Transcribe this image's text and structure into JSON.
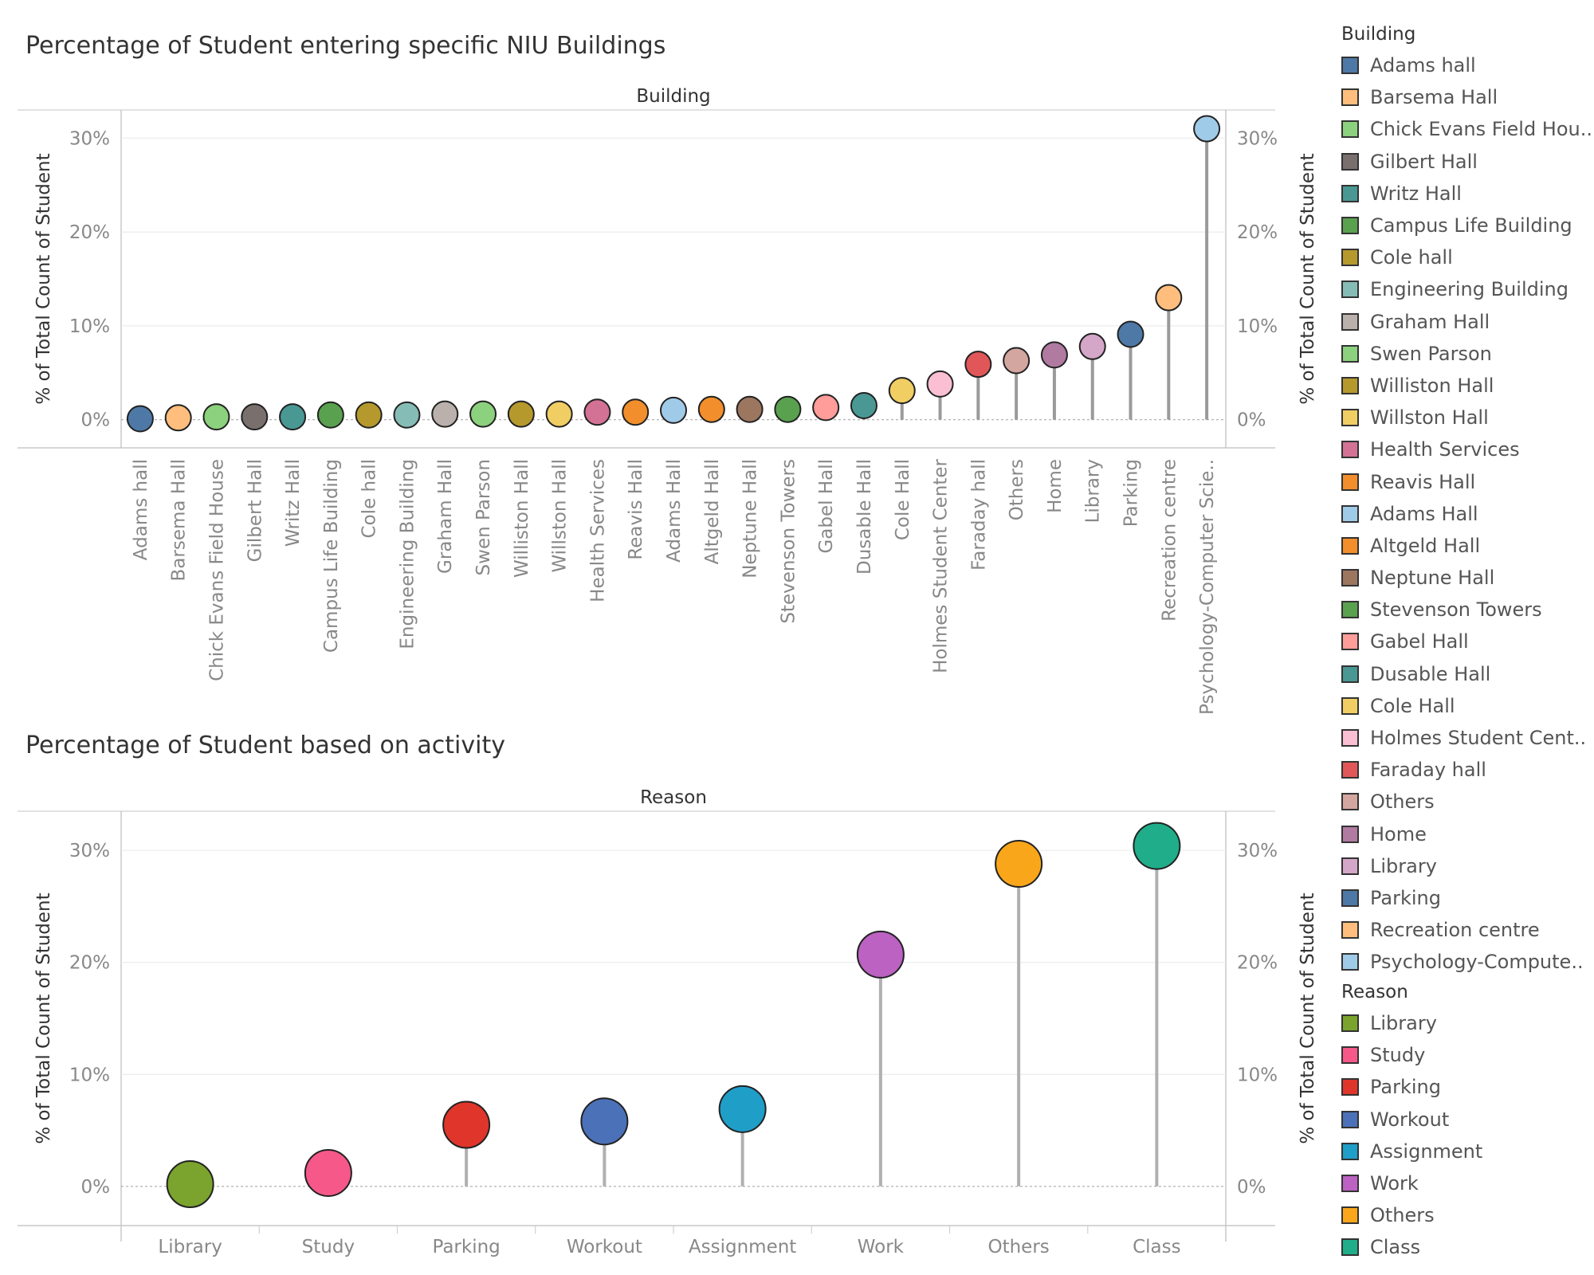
{
  "chart_data": [
    {
      "type": "lollipop",
      "title": "Percentage of Student entering specific NIU Buildings",
      "header": "Building",
      "ylabel": "% of Total Count of Student",
      "ylim": [
        -3,
        33
      ],
      "yticks": [
        0,
        10,
        20,
        30
      ],
      "yticklabels": [
        "0%",
        "10%",
        "20%",
        "30%"
      ],
      "categories": [
        "Adams hall",
        "Barsema Hall",
        "Chick Evans Field House",
        "Gilbert Hall",
        "Writz Hall",
        "Campus Life Building",
        "Cole hall",
        "Engineering Building",
        "Graham Hall",
        "Swen Parson",
        "Williston Hall",
        "Willston Hall",
        "Health Services",
        "Reavis Hall",
        "Adams Hall",
        "Altgeld Hall",
        "Neptune Hall",
        "Stevenson Towers",
        "Gabel Hall",
        "Dusable Hall",
        "Cole Hall",
        "Holmes Student Center",
        "Faraday hall",
        "Others",
        "Home",
        "Library",
        "Parking",
        "Recreation centre",
        "Psychology-Computer Scie.."
      ],
      "values": [
        0.1,
        0.2,
        0.3,
        0.3,
        0.3,
        0.5,
        0.5,
        0.5,
        0.6,
        0.6,
        0.6,
        0.6,
        0.8,
        0.8,
        1.0,
        1.1,
        1.1,
        1.1,
        1.3,
        1.5,
        3.1,
        3.8,
        5.9,
        6.3,
        6.9,
        7.8,
        9.1,
        13.0,
        31.0
      ],
      "colors": [
        "#4e79a7",
        "#ffbe7d",
        "#8cd17d",
        "#79706e",
        "#499894",
        "#59a14f",
        "#b6992d",
        "#86bcb6",
        "#bab0ac",
        "#8cd17d",
        "#b6992d",
        "#f1ce63",
        "#d37295",
        "#f28e2b",
        "#a0cbe8",
        "#f28e2b",
        "#9d7660",
        "#59a14f",
        "#ff9d9a",
        "#499894",
        "#f1ce63",
        "#fabfd2",
        "#e15759",
        "#d4a6a0",
        "#b07aa1",
        "#d4a6c8",
        "#4e79a7",
        "#ffbe7d",
        "#a0cbe8"
      ]
    },
    {
      "type": "lollipop",
      "title": "Percentage of Student based on activity",
      "header": "Reason",
      "ylabel": "% of Total Count of Student",
      "ylim": [
        -3.5,
        33.5
      ],
      "yticks": [
        0,
        10,
        20,
        30
      ],
      "yticklabels": [
        "0%",
        "10%",
        "20%",
        "30%"
      ],
      "categories": [
        "Library",
        "Study",
        "Parking",
        "Workout",
        "Assignment",
        "Work",
        "Others",
        "Class"
      ],
      "values": [
        0.2,
        1.2,
        5.5,
        5.8,
        6.9,
        20.7,
        28.8,
        30.4
      ],
      "colors": [
        "#7aa42d",
        "#f6588a",
        "#e0352b",
        "#4b71b8",
        "#1f9ec8",
        "#bb62c2",
        "#f9a61b",
        "#1fad8a"
      ]
    }
  ],
  "legend_building": {
    "title": "Building",
    "items": [
      {
        "label": "Adams hall",
        "color": "#4e79a7"
      },
      {
        "label": "Barsema Hall",
        "color": "#ffbe7d"
      },
      {
        "label": "Chick Evans Field Hou..",
        "color": "#8cd17d"
      },
      {
        "label": "Gilbert Hall",
        "color": "#79706e"
      },
      {
        "label": "Writz Hall",
        "color": "#499894"
      },
      {
        "label": "Campus Life Building",
        "color": "#59a14f"
      },
      {
        "label": "Cole hall",
        "color": "#b6992d"
      },
      {
        "label": "Engineering Building",
        "color": "#86bcb6"
      },
      {
        "label": "Graham Hall",
        "color": "#bab0ac"
      },
      {
        "label": "Swen Parson",
        "color": "#8cd17d"
      },
      {
        "label": "Williston Hall",
        "color": "#b6992d"
      },
      {
        "label": "Willston Hall",
        "color": "#f1ce63"
      },
      {
        "label": "Health Services",
        "color": "#d37295"
      },
      {
        "label": "Reavis Hall",
        "color": "#f28e2b"
      },
      {
        "label": "Adams Hall",
        "color": "#a0cbe8"
      },
      {
        "label": "Altgeld Hall",
        "color": "#f28e2b"
      },
      {
        "label": "Neptune Hall",
        "color": "#9d7660"
      },
      {
        "label": "Stevenson Towers",
        "color": "#59a14f"
      },
      {
        "label": "Gabel Hall",
        "color": "#ff9d9a"
      },
      {
        "label": "Dusable Hall",
        "color": "#499894"
      },
      {
        "label": "Cole Hall",
        "color": "#f1ce63"
      },
      {
        "label": "Holmes Student Cent..",
        "color": "#fabfd2"
      },
      {
        "label": "Faraday hall",
        "color": "#e15759"
      },
      {
        "label": "Others",
        "color": "#d4a6a0"
      },
      {
        "label": "Home",
        "color": "#b07aa1"
      },
      {
        "label": "Library",
        "color": "#d4a6c8"
      },
      {
        "label": "Parking",
        "color": "#4e79a7"
      },
      {
        "label": "Recreation centre",
        "color": "#ffbe7d"
      },
      {
        "label": "Psychology-Compute..",
        "color": "#a0cbe8"
      }
    ]
  },
  "legend_reason": {
    "title": "Reason",
    "items": [
      {
        "label": "Library",
        "color": "#7aa42d"
      },
      {
        "label": "Study",
        "color": "#f6588a"
      },
      {
        "label": "Parking",
        "color": "#e0352b"
      },
      {
        "label": "Workout",
        "color": "#4b71b8"
      },
      {
        "label": "Assignment",
        "color": "#1f9ec8"
      },
      {
        "label": "Work",
        "color": "#bb62c2"
      },
      {
        "label": "Others",
        "color": "#f9a61b"
      },
      {
        "label": "Class",
        "color": "#1fad8a"
      }
    ]
  }
}
